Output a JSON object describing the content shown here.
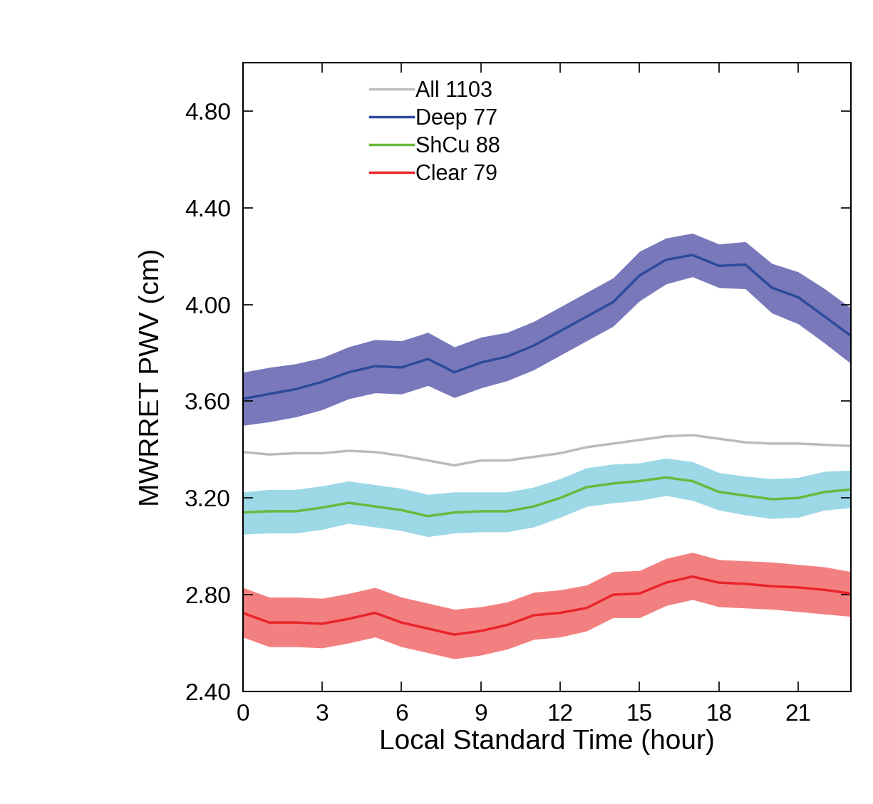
{
  "chart_data": {
    "type": "line",
    "x_label": "Local Standard Time (hour)",
    "y_label": "MWRRET PWV (cm)",
    "x": [
      0,
      1,
      2,
      3,
      4,
      5,
      6,
      7,
      8,
      9,
      10,
      11,
      12,
      13,
      14,
      15,
      16,
      17,
      18,
      19,
      20,
      21,
      22,
      23
    ],
    "xlim": [
      0,
      23
    ],
    "xticks": [
      0,
      3,
      6,
      9,
      12,
      15,
      18,
      21
    ],
    "ylim": [
      2.4,
      5.0
    ],
    "yticks": [
      {
        "value": 2.4,
        "label": "2.40"
      },
      {
        "value": 2.8,
        "label": "2.80"
      },
      {
        "value": 3.2,
        "label": "3.20"
      },
      {
        "value": 3.6,
        "label": "3.60"
      },
      {
        "value": 4.0,
        "label": "4.00"
      },
      {
        "value": 4.4,
        "label": "4.40"
      },
      {
        "value": 4.8,
        "label": "4.80"
      }
    ],
    "legend": "upper left",
    "grid": false,
    "series": [
      {
        "name": "All 1103",
        "color": "#bbbbbb",
        "values": [
          3.39,
          3.38,
          3.385,
          3.385,
          3.395,
          3.39,
          3.375,
          3.355,
          3.335,
          3.355,
          3.355,
          3.37,
          3.385,
          3.41,
          3.425,
          3.44,
          3.455,
          3.46,
          3.445,
          3.43,
          3.425,
          3.425,
          3.42,
          3.415
        ]
      },
      {
        "name": "Deep 77",
        "color": "#2d4a9a",
        "values": [
          3.61,
          3.63,
          3.65,
          3.68,
          3.72,
          3.745,
          3.74,
          3.775,
          3.72,
          3.76,
          3.785,
          3.83,
          3.89,
          3.95,
          4.01,
          4.12,
          4.185,
          4.205,
          4.16,
          4.165,
          4.07,
          4.03,
          3.95,
          3.87
        ],
        "upper": [
          3.72,
          3.74,
          3.755,
          3.78,
          3.825,
          3.855,
          3.85,
          3.885,
          3.825,
          3.865,
          3.885,
          3.93,
          3.99,
          4.05,
          4.11,
          4.22,
          4.275,
          4.295,
          4.25,
          4.26,
          4.17,
          4.135,
          4.065,
          3.985
        ],
        "lower": [
          3.5,
          3.515,
          3.535,
          3.565,
          3.61,
          3.635,
          3.63,
          3.665,
          3.615,
          3.655,
          3.685,
          3.73,
          3.79,
          3.85,
          3.91,
          4.015,
          4.085,
          4.115,
          4.07,
          4.065,
          3.965,
          3.92,
          3.84,
          3.755
        ]
      },
      {
        "name": "ShCu 88",
        "color": "#6ab83c",
        "values": [
          3.14,
          3.145,
          3.145,
          3.16,
          3.18,
          3.165,
          3.15,
          3.125,
          3.14,
          3.145,
          3.145,
          3.165,
          3.2,
          3.245,
          3.26,
          3.27,
          3.285,
          3.27,
          3.225,
          3.21,
          3.195,
          3.2,
          3.225,
          3.235
        ],
        "upper": [
          3.225,
          3.235,
          3.235,
          3.25,
          3.27,
          3.255,
          3.24,
          3.215,
          3.225,
          3.225,
          3.225,
          3.245,
          3.28,
          3.325,
          3.34,
          3.345,
          3.365,
          3.35,
          3.305,
          3.29,
          3.28,
          3.285,
          3.31,
          3.315
        ],
        "lower": [
          3.05,
          3.055,
          3.055,
          3.07,
          3.095,
          3.08,
          3.065,
          3.04,
          3.055,
          3.06,
          3.06,
          3.08,
          3.12,
          3.165,
          3.18,
          3.19,
          3.21,
          3.19,
          3.15,
          3.13,
          3.115,
          3.12,
          3.15,
          3.16
        ]
      },
      {
        "name": "Clear 79",
        "color": "#e8242a",
        "values": [
          2.725,
          2.685,
          2.685,
          2.68,
          2.7,
          2.725,
          2.685,
          2.66,
          2.635,
          2.65,
          2.675,
          2.715,
          2.725,
          2.745,
          2.8,
          2.805,
          2.85,
          2.875,
          2.85,
          2.845,
          2.835,
          2.83,
          2.82,
          2.805
        ],
        "upper": [
          2.83,
          2.79,
          2.79,
          2.785,
          2.805,
          2.83,
          2.79,
          2.765,
          2.74,
          2.75,
          2.77,
          2.81,
          2.82,
          2.84,
          2.895,
          2.9,
          2.95,
          2.975,
          2.945,
          2.94,
          2.935,
          2.925,
          2.915,
          2.895
        ],
        "lower": [
          2.625,
          2.585,
          2.585,
          2.58,
          2.6,
          2.625,
          2.585,
          2.56,
          2.535,
          2.55,
          2.575,
          2.615,
          2.625,
          2.65,
          2.705,
          2.705,
          2.755,
          2.78,
          2.75,
          2.745,
          2.74,
          2.73,
          2.72,
          2.71
        ]
      }
    ]
  }
}
